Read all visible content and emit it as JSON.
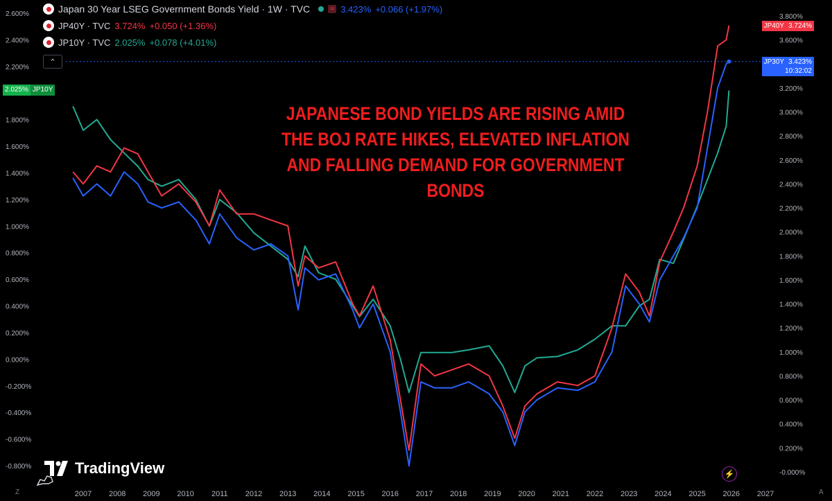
{
  "legend": {
    "main": {
      "title": "Japan 30 Year LSEG Government Bonds Yield · 1W · TVC",
      "wave": "≈",
      "value": "3.423%",
      "change": "+0.066 (+1.97%)"
    },
    "jp40": {
      "title": "JP40Y · TVC",
      "value": "3.724%",
      "change": "+0.050 (+1.36%)"
    },
    "jp10": {
      "title": "JP10Y · TVC",
      "value": "2.025%",
      "change": "+0.078 (+4.01%)"
    },
    "collapse_icon": "chevron-up-icon",
    "collapse_glyph": "⌃"
  },
  "badges": {
    "left": {
      "value": "2.025%",
      "ticker": "JP10Y"
    },
    "right_red": {
      "ticker": "JP40Y",
      "value": "3.724%"
    },
    "right_blue": {
      "ticker": "JP30Y",
      "value": "3.423%",
      "time": "10:32:02"
    }
  },
  "annotation": "JAPANESE BOND YIELDS ARE RISING AMID THE BOJ RATE HIKES, ELEVATED INFLATION AND FALLING DEMAND FOR GOVERNMENT BONDS",
  "branding": {
    "logo_text": "TradingView"
  },
  "corner": {
    "left": "Z",
    "right": "A"
  },
  "colors": {
    "jp30": "#2962ff",
    "jp40": "#f23645",
    "jp10": "#22ab94",
    "annotation": "#f01d1d"
  },
  "chart_data": {
    "type": "line",
    "left_axis": {
      "ticks": [
        "2.600%",
        "2.400%",
        "2.200%",
        "2.000%",
        "1.800%",
        "1.600%",
        "1.400%",
        "1.200%",
        "1.000%",
        "0.800%",
        "0.600%",
        "0.400%",
        "0.200%",
        "0.000%",
        "-0.200%",
        "-0.400%",
        "-0.600%",
        "-0.800%"
      ],
      "range": [
        -0.8,
        2.6
      ]
    },
    "right_axis": {
      "ticks": [
        "3.800%",
        "3.600%",
        "3.400%",
        "3.200%",
        "3.000%",
        "2.800%",
        "2.600%",
        "2.400%",
        "2.200%",
        "2.000%",
        "1.800%",
        "1.600%",
        "1.400%",
        "1.200%",
        "1.000%",
        "0.800%",
        "0.600%",
        "0.400%",
        "0.200%",
        "-0.000%"
      ],
      "range": [
        0.0,
        3.8
      ]
    },
    "x_axis": {
      "ticks": [
        "2007",
        "2008",
        "2009",
        "2010",
        "2011",
        "2012",
        "2013",
        "2014",
        "2015",
        "2016",
        "2017",
        "2018",
        "2019",
        "2020",
        "2021",
        "2022",
        "2023",
        "2024",
        "2025",
        "2026",
        "2027"
      ],
      "range": [
        2006.5,
        2027.8
      ]
    },
    "series": [
      {
        "name": "JP10Y",
        "axis": "left",
        "x": [
          2006.7,
          2007.0,
          2007.4,
          2007.8,
          2008.2,
          2008.6,
          2008.9,
          2009.3,
          2009.8,
          2010.3,
          2010.7,
          2011.0,
          2011.5,
          2012.0,
          2012.5,
          2013.0,
          2013.3,
          2013.5,
          2013.9,
          2014.4,
          2014.9,
          2015.1,
          2015.5,
          2016.0,
          2016.3,
          2016.55,
          2016.9,
          2017.3,
          2017.8,
          2018.3,
          2018.9,
          2019.3,
          2019.65,
          2019.95,
          2020.3,
          2020.9,
          2021.5,
          2022.0,
          2022.5,
          2022.9,
          2023.3,
          2023.6,
          2023.9,
          2024.3,
          2024.6,
          2025.0,
          2025.3,
          2025.6,
          2025.85,
          2025.93
        ],
        "values": [
          1.9,
          1.72,
          1.8,
          1.65,
          1.55,
          1.45,
          1.35,
          1.3,
          1.35,
          1.2,
          1.0,
          1.2,
          1.1,
          0.95,
          0.85,
          0.75,
          0.62,
          0.85,
          0.65,
          0.6,
          0.4,
          0.32,
          0.45,
          0.25,
          0.0,
          -0.25,
          0.05,
          0.05,
          0.05,
          0.07,
          0.1,
          -0.05,
          -0.25,
          -0.05,
          0.01,
          0.02,
          0.07,
          0.15,
          0.25,
          0.25,
          0.4,
          0.45,
          0.75,
          0.72,
          0.9,
          1.15,
          1.35,
          1.55,
          1.75,
          2.02
        ]
      },
      {
        "name": "JP40Y",
        "axis": "right",
        "x": [
          2006.7,
          2007.0,
          2007.4,
          2007.8,
          2008.2,
          2008.6,
          2008.9,
          2009.3,
          2009.8,
          2010.3,
          2010.7,
          2011.0,
          2011.5,
          2012.0,
          2012.5,
          2013.0,
          2013.3,
          2013.5,
          2013.9,
          2014.4,
          2014.9,
          2015.1,
          2015.5,
          2016.0,
          2016.3,
          2016.55,
          2016.9,
          2017.3,
          2017.8,
          2018.3,
          2018.9,
          2019.3,
          2019.65,
          2019.95,
          2020.3,
          2020.9,
          2021.5,
          2022.0,
          2022.5,
          2022.9,
          2023.3,
          2023.6,
          2023.9,
          2024.3,
          2024.6,
          2025.0,
          2025.3,
          2025.6,
          2025.85,
          2025.93
        ],
        "values": [
          2.5,
          2.4,
          2.55,
          2.5,
          2.7,
          2.65,
          2.5,
          2.3,
          2.4,
          2.25,
          2.05,
          2.35,
          2.15,
          2.15,
          2.1,
          2.05,
          1.55,
          1.8,
          1.7,
          1.75,
          1.4,
          1.3,
          1.55,
          1.1,
          0.6,
          0.18,
          0.9,
          0.8,
          0.85,
          0.9,
          0.8,
          0.55,
          0.28,
          0.55,
          0.65,
          0.75,
          0.72,
          0.8,
          1.2,
          1.65,
          1.5,
          1.3,
          1.75,
          2.0,
          2.2,
          2.55,
          3.0,
          3.55,
          3.6,
          3.72
        ]
      },
      {
        "name": "JP30Y",
        "axis": "right",
        "x": [
          2006.7,
          2007.0,
          2007.4,
          2007.8,
          2008.2,
          2008.6,
          2008.9,
          2009.3,
          2009.8,
          2010.3,
          2010.7,
          2011.0,
          2011.5,
          2012.0,
          2012.5,
          2013.0,
          2013.3,
          2013.5,
          2013.9,
          2014.4,
          2014.9,
          2015.1,
          2015.5,
          2016.0,
          2016.3,
          2016.55,
          2016.9,
          2017.3,
          2017.8,
          2018.3,
          2018.9,
          2019.3,
          2019.65,
          2019.95,
          2020.3,
          2020.9,
          2021.5,
          2022.0,
          2022.5,
          2022.9,
          2023.3,
          2023.6,
          2023.9,
          2024.3,
          2024.6,
          2025.0,
          2025.3,
          2025.6,
          2025.85,
          2025.93
        ],
        "values": [
          2.45,
          2.3,
          2.4,
          2.3,
          2.5,
          2.4,
          2.25,
          2.2,
          2.25,
          2.1,
          1.9,
          2.15,
          1.95,
          1.85,
          1.9,
          1.8,
          1.35,
          1.7,
          1.6,
          1.65,
          1.35,
          1.2,
          1.4,
          1.0,
          0.5,
          0.05,
          0.75,
          0.7,
          0.7,
          0.75,
          0.65,
          0.5,
          0.22,
          0.5,
          0.6,
          0.7,
          0.68,
          0.75,
          1.0,
          1.55,
          1.4,
          1.25,
          1.6,
          1.8,
          1.95,
          2.2,
          2.7,
          3.2,
          3.4,
          3.42
        ]
      }
    ]
  }
}
